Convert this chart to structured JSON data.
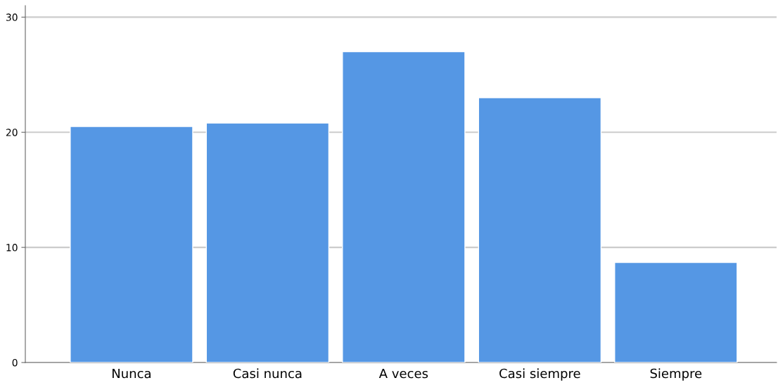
{
  "chart_data": {
    "type": "bar",
    "categories": [
      "Nunca",
      "Casi nunca",
      "A veces",
      "Casi siempre",
      "Siempre"
    ],
    "values": [
      20.5,
      20.8,
      27.0,
      23.0,
      8.7
    ],
    "color": "#5597e4",
    "ylim": [
      0,
      31
    ],
    "yticks": [
      0,
      10,
      20,
      30
    ],
    "grid": "y"
  }
}
